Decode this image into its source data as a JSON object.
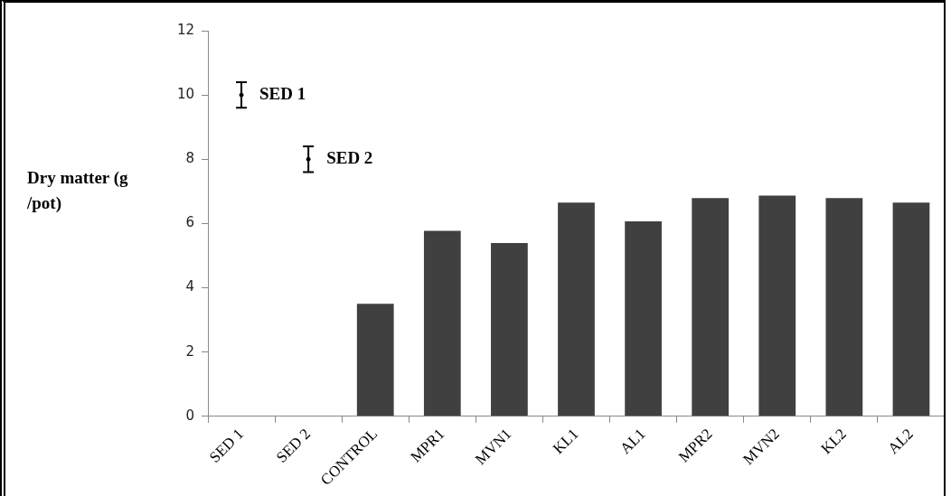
{
  "chart_data": {
    "type": "bar",
    "ylabel": "Dry matter (g /pot)",
    "categories": [
      "SED 1",
      "SED 2",
      "CONTROL",
      "MPR1",
      "MVN1",
      "KL1",
      "AL1",
      "MPR2",
      "MVN2",
      "KL2",
      "AL2"
    ],
    "series": [
      {
        "color": "#404040",
        "values": [
          null,
          null,
          3.5,
          5.77,
          5.39,
          6.65,
          6.07,
          6.79,
          6.87,
          6.79,
          6.65
        ]
      },
      {
        "type": "scatter",
        "color": "#000000",
        "x": [
          "SED 1",
          "SED 2"
        ],
        "values": [
          10,
          8
        ],
        "errors": [
          0.4,
          0.4
        ]
      }
    ],
    "marker": "circle",
    "ylim": [
      0,
      12
    ],
    "yticks": [
      0,
      2,
      4,
      6,
      8,
      10,
      12
    ],
    "grid": false,
    "annotations": [
      {
        "text": "SED 1",
        "x": "SED 1",
        "y": 10
      },
      {
        "text": "SED 2",
        "x": "SED 2",
        "y": 8
      }
    ]
  }
}
